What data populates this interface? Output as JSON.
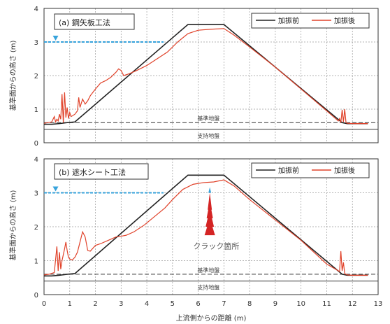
{
  "chart_data": [
    {
      "type": "line",
      "panel_label": "(a) 鋼矢板工法",
      "ylabel": "基準面からの高さ (m)",
      "ylim": [
        0,
        4
      ],
      "yticks": [
        0,
        1,
        2,
        3,
        4
      ],
      "xlim": [
        0,
        13
      ],
      "grid": true,
      "legend_position": "top-right",
      "water_level": 3.0,
      "lines": [
        {
          "label": "基準地盤",
          "y": 0.6,
          "style": "dashed"
        },
        {
          "label": "支持地盤",
          "y": 0.4,
          "style": "solid"
        }
      ],
      "series": [
        {
          "name": "加振前",
          "color": "#222222",
          "x": [
            0,
            0.3,
            0.6,
            0.9,
            1.2,
            5.6,
            7.0,
            11.6,
            11.8,
            12.6
          ],
          "y": [
            0.55,
            0.55,
            0.57,
            0.6,
            0.62,
            3.52,
            3.52,
            0.6,
            0.57,
            0.57
          ]
        },
        {
          "name": "加振後",
          "color": "#e0422a",
          "x": [
            0,
            0.15,
            0.3,
            0.4,
            0.45,
            0.5,
            0.55,
            0.6,
            0.65,
            0.7,
            0.75,
            0.8,
            0.85,
            0.9,
            0.95,
            1.0,
            1.05,
            1.1,
            1.2,
            1.3,
            1.35,
            1.4,
            1.5,
            1.6,
            1.7,
            1.8,
            2.0,
            2.2,
            2.4,
            2.6,
            2.8,
            2.9,
            3.0,
            3.1,
            3.3,
            3.6,
            4.0,
            4.4,
            4.8,
            5.2,
            5.6,
            6.0,
            6.5,
            7.0,
            7.4,
            8.0,
            9.0,
            10.0,
            11.0,
            11.45,
            11.5,
            11.55,
            11.6,
            11.65,
            11.7,
            11.75,
            11.8,
            12.0,
            12.6
          ],
          "y": [
            0.58,
            0.6,
            0.62,
            0.78,
            0.62,
            0.7,
            0.65,
            0.85,
            0.7,
            1.45,
            0.6,
            1.5,
            0.75,
            1.05,
            0.72,
            0.9,
            0.78,
            0.8,
            0.85,
            0.95,
            1.35,
            1.05,
            1.3,
            1.15,
            1.25,
            1.4,
            1.6,
            1.78,
            1.85,
            1.95,
            2.1,
            2.2,
            2.15,
            2.0,
            2.05,
            2.15,
            2.3,
            2.5,
            2.7,
            3.0,
            3.25,
            3.35,
            3.38,
            3.4,
            3.2,
            2.85,
            2.25,
            1.6,
            0.95,
            0.65,
            0.72,
            0.6,
            0.98,
            0.62,
            1.0,
            0.6,
            0.58,
            0.57,
            0.57
          ]
        }
      ]
    },
    {
      "type": "line",
      "panel_label": "(b) 遮水シート工法",
      "ylabel": "基準面からの高さ (m)",
      "xlabel": "上流側からの距離 (m)",
      "ylim": [
        0,
        4
      ],
      "yticks": [
        0,
        1,
        2,
        3,
        4
      ],
      "xlim": [
        0,
        13
      ],
      "xticks": [
        0,
        1,
        2,
        3,
        4,
        5,
        6,
        7,
        8,
        9,
        10,
        11,
        12,
        13
      ],
      "grid": true,
      "legend_position": "top-right",
      "water_level": 3.0,
      "annotations": [
        {
          "text": "クラック箇所",
          "x": 6.7,
          "y": 1.35
        }
      ],
      "crack_x": 6.45,
      "crack_y_range": [
        1.75,
        3.0
      ],
      "lines": [
        {
          "label": "基準地盤",
          "y": 0.6,
          "style": "dashed"
        },
        {
          "label": "支持地盤",
          "y": 0.4,
          "style": "solid"
        }
      ],
      "series": [
        {
          "name": "加振前",
          "color": "#222222",
          "x": [
            0,
            0.3,
            0.6,
            0.9,
            1.2,
            5.6,
            7.0,
            11.6,
            11.8,
            12.6
          ],
          "y": [
            0.55,
            0.55,
            0.57,
            0.6,
            0.62,
            3.52,
            3.52,
            0.6,
            0.57,
            0.57
          ]
        },
        {
          "name": "加振後",
          "color": "#e0422a",
          "x": [
            0,
            0.2,
            0.4,
            0.5,
            0.55,
            0.6,
            0.65,
            0.7,
            0.8,
            0.85,
            0.9,
            0.95,
            1.0,
            1.1,
            1.2,
            1.3,
            1.4,
            1.5,
            1.6,
            1.7,
            1.8,
            2.0,
            2.2,
            2.5,
            2.8,
            3.0,
            3.2,
            3.5,
            3.9,
            4.3,
            4.7,
            5.0,
            5.4,
            5.8,
            6.2,
            6.6,
            7.0,
            7.4,
            8.0,
            9.0,
            10.0,
            11.0,
            11.5,
            11.55,
            11.6,
            11.65,
            11.7,
            11.8,
            12.0,
            12.6
          ],
          "y": [
            0.58,
            0.6,
            0.65,
            1.42,
            0.7,
            1.25,
            0.75,
            1.0,
            1.35,
            1.55,
            1.3,
            1.1,
            1.05,
            1.02,
            1.1,
            1.25,
            1.55,
            1.85,
            1.7,
            1.3,
            1.28,
            1.45,
            1.5,
            1.6,
            1.7,
            1.72,
            1.75,
            1.85,
            2.05,
            2.3,
            2.55,
            2.8,
            3.1,
            3.25,
            3.3,
            3.32,
            3.38,
            3.2,
            2.8,
            2.2,
            1.6,
            0.9,
            0.68,
            1.28,
            0.7,
            0.95,
            0.62,
            0.58,
            0.57,
            0.57
          ]
        }
      ]
    }
  ]
}
